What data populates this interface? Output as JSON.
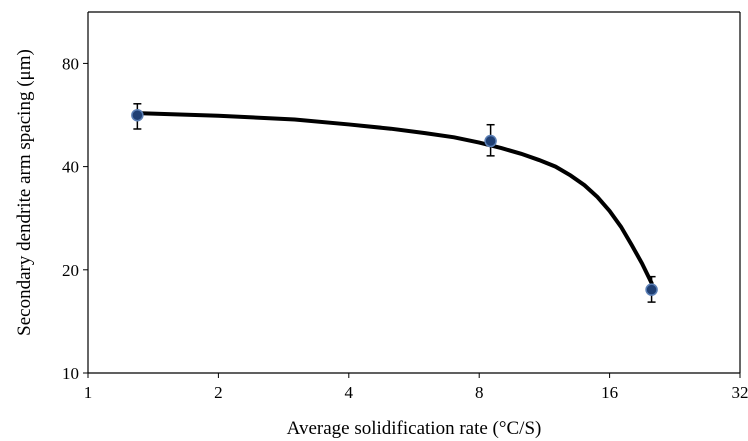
{
  "chart_data": {
    "type": "scatter",
    "title": "",
    "xlabel": "Average solidification rate (°C/S)",
    "ylabel": "Secondary dendrite arm spacing (μm)",
    "x_scale": "log2",
    "y_scale": "log2",
    "xlim": [
      1,
      32
    ],
    "ylim": [
      10,
      113
    ],
    "x_ticks": [
      1,
      2,
      4,
      8,
      16,
      32
    ],
    "y_ticks": [
      10,
      20,
      40,
      80
    ],
    "x_tick_labels": [
      "1",
      "2",
      "4",
      "8",
      "16",
      "32"
    ],
    "y_tick_labels": [
      "10",
      "20",
      "40",
      "80"
    ],
    "grid": false,
    "points": [
      {
        "x": 1.3,
        "y": 56.5,
        "y_err_low": 5.0,
        "y_err_high": 4.5
      },
      {
        "x": 8.5,
        "y": 47.5,
        "y_err_low": 4.5,
        "y_err_high": 5.5
      },
      {
        "x": 20.0,
        "y": 17.5,
        "y_err_low": 1.4,
        "y_err_high": 1.6
      }
    ],
    "fit_curve": {
      "x": [
        1.3,
        2,
        3,
        4,
        5,
        6,
        7,
        8,
        9,
        10,
        11,
        12,
        13,
        14,
        15,
        16,
        17,
        18,
        19,
        20
      ],
      "y": [
        57.3,
        56.3,
        54.9,
        53.1,
        51.6,
        50.1,
        48.7,
        47.0,
        45.3,
        43.6,
        41.8,
        40.0,
        37.7,
        35.3,
        32.6,
        29.7,
        26.7,
        23.6,
        20.9,
        18.3
      ]
    },
    "colors": {
      "marker_fill": "#1f3f73",
      "marker_edge": "#5b7fb5",
      "curve": "#000000",
      "axis": "#000000"
    }
  }
}
